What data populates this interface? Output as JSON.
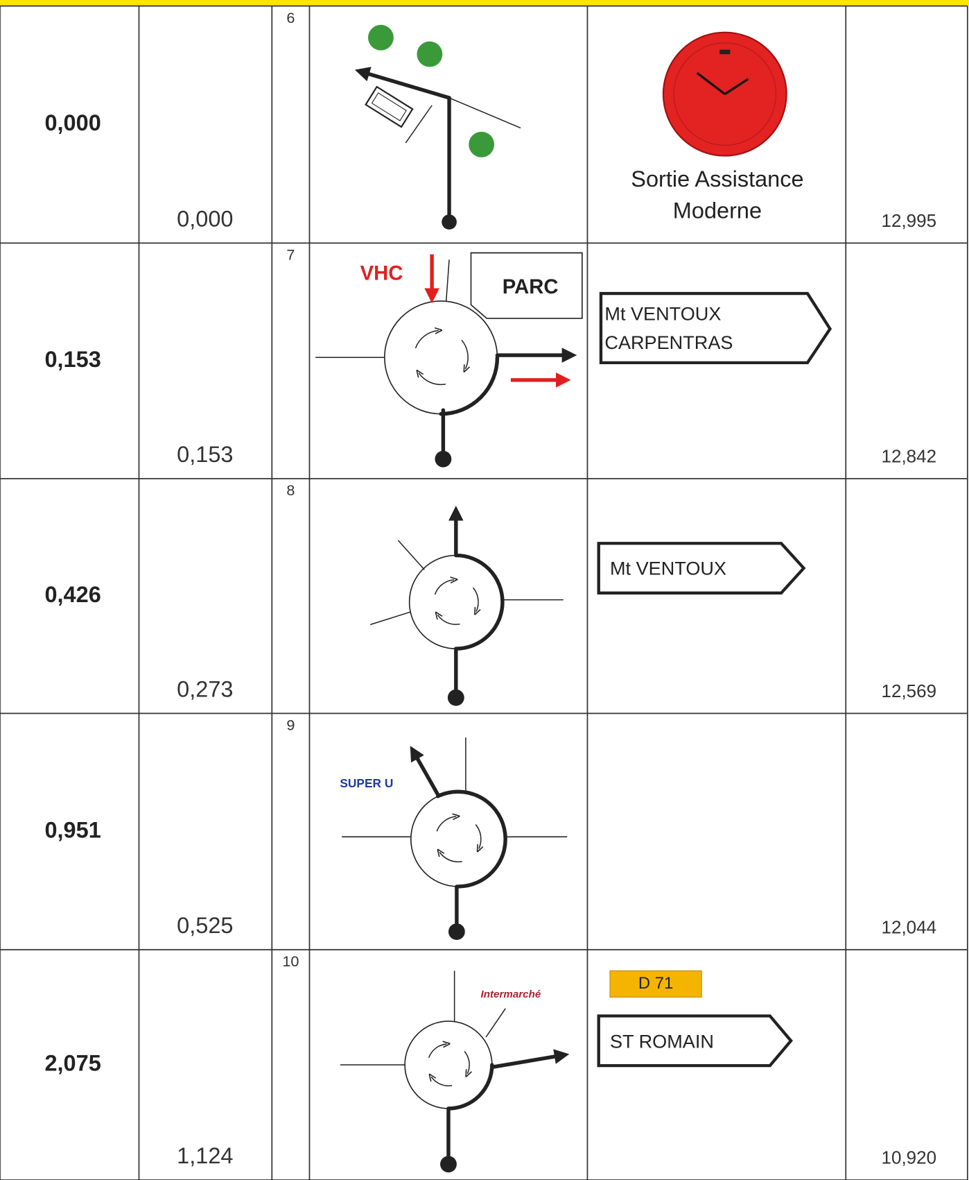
{
  "rows": [
    {
      "total": "0,000",
      "partial": "0,000",
      "step": "6",
      "remaining": "12,995",
      "caption": [
        "Sortie Assistance",
        "Moderne"
      ]
    },
    {
      "total": "0,153",
      "partial": "0,153",
      "step": "7",
      "remaining": "12,842",
      "labels": [
        "VHC",
        "PARC"
      ],
      "sign": [
        "Mt VENTOUX",
        "CARPENTRAS"
      ]
    },
    {
      "total": "0,426",
      "partial": "0,273",
      "step": "8",
      "remaining": "12,569",
      "sign": [
        "Mt VENTOUX"
      ]
    },
    {
      "total": "0,951",
      "partial": "0,525",
      "step": "9",
      "remaining": "12,044",
      "labels": [
        "SUPER U"
      ]
    },
    {
      "total": "2,075",
      "partial": "1,124",
      "step": "10",
      "remaining": "10,920",
      "labels": [
        "Intermarché"
      ],
      "badge": "D 71",
      "sign": [
        "ST ROMAIN"
      ]
    }
  ]
}
